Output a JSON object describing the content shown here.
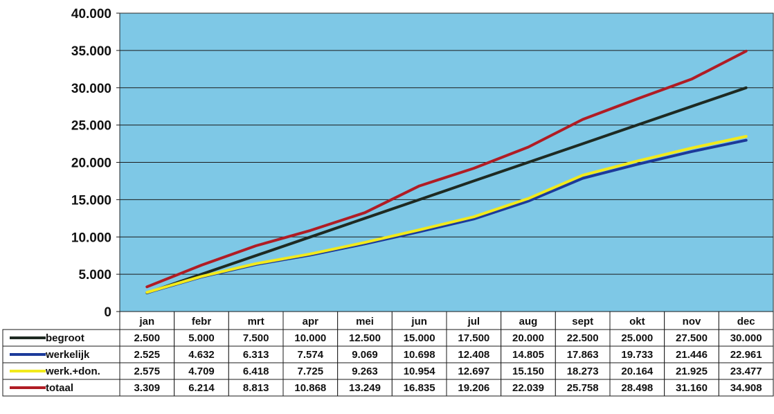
{
  "chart_data": {
    "type": "line",
    "title": "",
    "xlabel": "",
    "ylabel": "",
    "ylim": [
      0,
      40000
    ],
    "y_ticks": [
      0,
      5000,
      10000,
      15000,
      20000,
      25000,
      30000,
      35000,
      40000
    ],
    "y_tick_labels": [
      "0",
      "5.000",
      "10.000",
      "15.000",
      "20.000",
      "25.000",
      "30.000",
      "35.000",
      "40.000"
    ],
    "grid": true,
    "plot_background": "#7ec8e6",
    "legend": "data-table-below",
    "categories": [
      "jan",
      "febr",
      "mrt",
      "apr",
      "mei",
      "jun",
      "jul",
      "aug",
      "sept",
      "okt",
      "nov",
      "dec"
    ],
    "series": [
      {
        "name": "begroot",
        "color": "#1e2a22",
        "values": [
          2500,
          5000,
          7500,
          10000,
          12500,
          15000,
          17500,
          20000,
          22500,
          25000,
          27500,
          30000
        ],
        "labels": [
          "2.500",
          "5.000",
          "7.500",
          "10.000",
          "12.500",
          "15.000",
          "17.500",
          "20.000",
          "22.500",
          "25.000",
          "27.500",
          "30.000"
        ]
      },
      {
        "name": "werkelijk",
        "color": "#1c3a9a",
        "values": [
          2525,
          4632,
          6313,
          7574,
          9069,
          10698,
          12408,
          14805,
          17863,
          19733,
          21446,
          22961
        ],
        "labels": [
          "2.525",
          "4.632",
          "6.313",
          "7.574",
          "9.069",
          "10.698",
          "12.408",
          "14.805",
          "17.863",
          "19.733",
          "21.446",
          "22.961"
        ]
      },
      {
        "name": "werk.+don.",
        "color": "#f2ea1c",
        "values": [
          2575,
          4709,
          6418,
          7725,
          9263,
          10954,
          12697,
          15150,
          18273,
          20164,
          21925,
          23477
        ],
        "labels": [
          "2.575",
          "4.709",
          "6.418",
          "7.725",
          "9.263",
          "10.954",
          "12.697",
          "15.150",
          "18.273",
          "20.164",
          "21.925",
          "23.477"
        ]
      },
      {
        "name": "totaal",
        "color": "#b01c24",
        "values": [
          3309,
          6214,
          8813,
          10868,
          13249,
          16835,
          19206,
          22039,
          25758,
          28498,
          31160,
          34908
        ],
        "labels": [
          "3.309",
          "6.214",
          "8.813",
          "10.868",
          "13.249",
          "16.835",
          "19.206",
          "22.039",
          "25.758",
          "28.498",
          "31.160",
          "34.908"
        ]
      }
    ]
  }
}
